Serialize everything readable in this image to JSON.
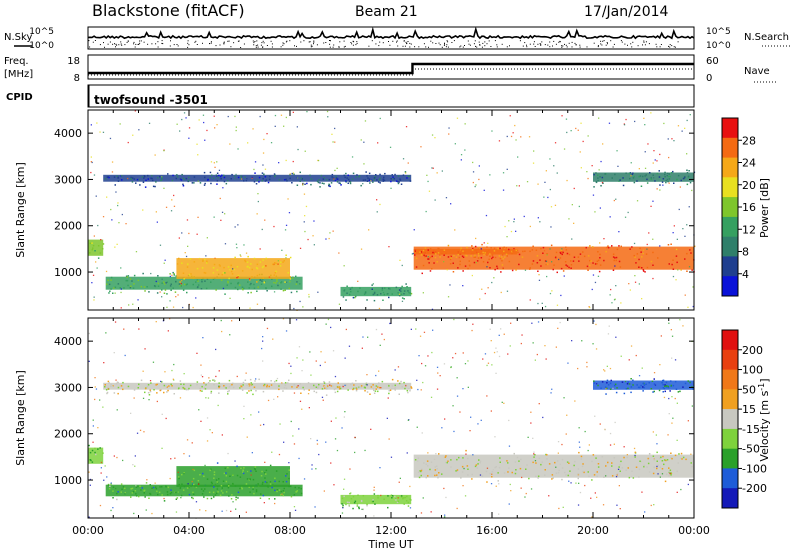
{
  "header": {
    "radar": "Blackstone (fitACF)",
    "beam": "Beam 21",
    "date": "17/Jan/2014"
  },
  "panels": {
    "nsky_label": "N.Sky",
    "nsearch_label": "N.Search",
    "noise_ticks": [
      "10^5",
      "10^0"
    ],
    "freq_label_top": "Freq.",
    "freq_label_unit": "[MHz]",
    "freq_ticks": [
      "18",
      "8"
    ],
    "nave_label": "Nave",
    "nave_ticks": [
      "60",
      "0"
    ],
    "cpid_label": "CPID",
    "cpid_value": "twofsound -3501"
  },
  "colorbars": {
    "power": {
      "label": "Power [dB]",
      "ticks": [
        "28",
        "24",
        "20",
        "16",
        "12",
        "8",
        "4"
      ]
    },
    "velocity": {
      "label": "Velocity [m s",
      "label_sup": "-1",
      "label_close": "]",
      "ticks": [
        "200",
        "100",
        "50",
        "15",
        "-15",
        "-50",
        "-100",
        "-200"
      ]
    }
  },
  "colors": {
    "power_scale": [
      "#0a12d8",
      "#1f3f8f",
      "#2f7f6a",
      "#35a060",
      "#7ec62c",
      "#e8e020",
      "#f5a818",
      "#f46a12",
      "#e81010"
    ],
    "velocity_scale": [
      "#141ab8",
      "#1e5cd8",
      "#2aa02a",
      "#7ed23c",
      "#c8c8c0",
      "#f0a020",
      "#f07818",
      "#e84010",
      "#e01010"
    ]
  },
  "chart_data": [
    {
      "type": "heatmap",
      "name": "power",
      "xlabel": "",
      "ylabel": "Slant Range [km]",
      "xlim": [
        0,
        24
      ],
      "ylim": [
        180,
        4500
      ],
      "yticks": [
        "4000",
        "3000",
        "2000",
        "1000"
      ],
      "x_tick_labels": [],
      "colorbar_range": [
        0,
        30
      ],
      "regions": [
        {
          "x": [
            0.0,
            0.6
          ],
          "y": [
            1350,
            1700
          ],
          "value": 14
        },
        {
          "x": [
            0.7,
            8.5
          ],
          "y": [
            620,
            900
          ],
          "value": 12
        },
        {
          "x": [
            3.5,
            8.0
          ],
          "y": [
            850,
            1300
          ],
          "value": 20
        },
        {
          "x": [
            0.6,
            12.8
          ],
          "y": [
            2950,
            3100
          ],
          "value": 6
        },
        {
          "x": [
            10.0,
            12.8
          ],
          "y": [
            480,
            680
          ],
          "value": 10
        },
        {
          "x": [
            12.9,
            24.0
          ],
          "y": [
            1050,
            1550
          ],
          "value": 26
        },
        {
          "x": [
            12.9,
            17.0
          ],
          "y": [
            1380,
            1500
          ],
          "value": 24
        },
        {
          "x": [
            20.0,
            24.0
          ],
          "y": [
            2950,
            3150
          ],
          "value": 8
        }
      ]
    },
    {
      "type": "heatmap",
      "name": "velocity",
      "xlabel": "Time UT",
      "ylabel": "Slant Range [km]",
      "xlim": [
        0,
        24
      ],
      "ylim": [
        180,
        4500
      ],
      "yticks": [
        "4000",
        "3000",
        "2000",
        "1000"
      ],
      "x_tick_labels": [
        "00:00",
        "04:00",
        "08:00",
        "12:00",
        "16:00",
        "20:00",
        "00:00"
      ],
      "colorbar_range": [
        -200,
        200
      ],
      "regions": [
        {
          "x": [
            0.0,
            0.6
          ],
          "y": [
            1350,
            1700
          ],
          "value": -60
        },
        {
          "x": [
            0.7,
            8.5
          ],
          "y": [
            650,
            900
          ],
          "value": -70
        },
        {
          "x": [
            3.5,
            8.0
          ],
          "y": [
            850,
            1300
          ],
          "value": -80
        },
        {
          "x": [
            0.6,
            12.8
          ],
          "y": [
            2950,
            3100
          ],
          "value": 0
        },
        {
          "x": [
            10.0,
            12.8
          ],
          "y": [
            480,
            680
          ],
          "value": -40
        },
        {
          "x": [
            12.9,
            24.0
          ],
          "y": [
            1050,
            1550
          ],
          "value": 0
        },
        {
          "x": [
            20.0,
            24.0
          ],
          "y": [
            2950,
            3150
          ],
          "value": -120
        }
      ]
    }
  ]
}
